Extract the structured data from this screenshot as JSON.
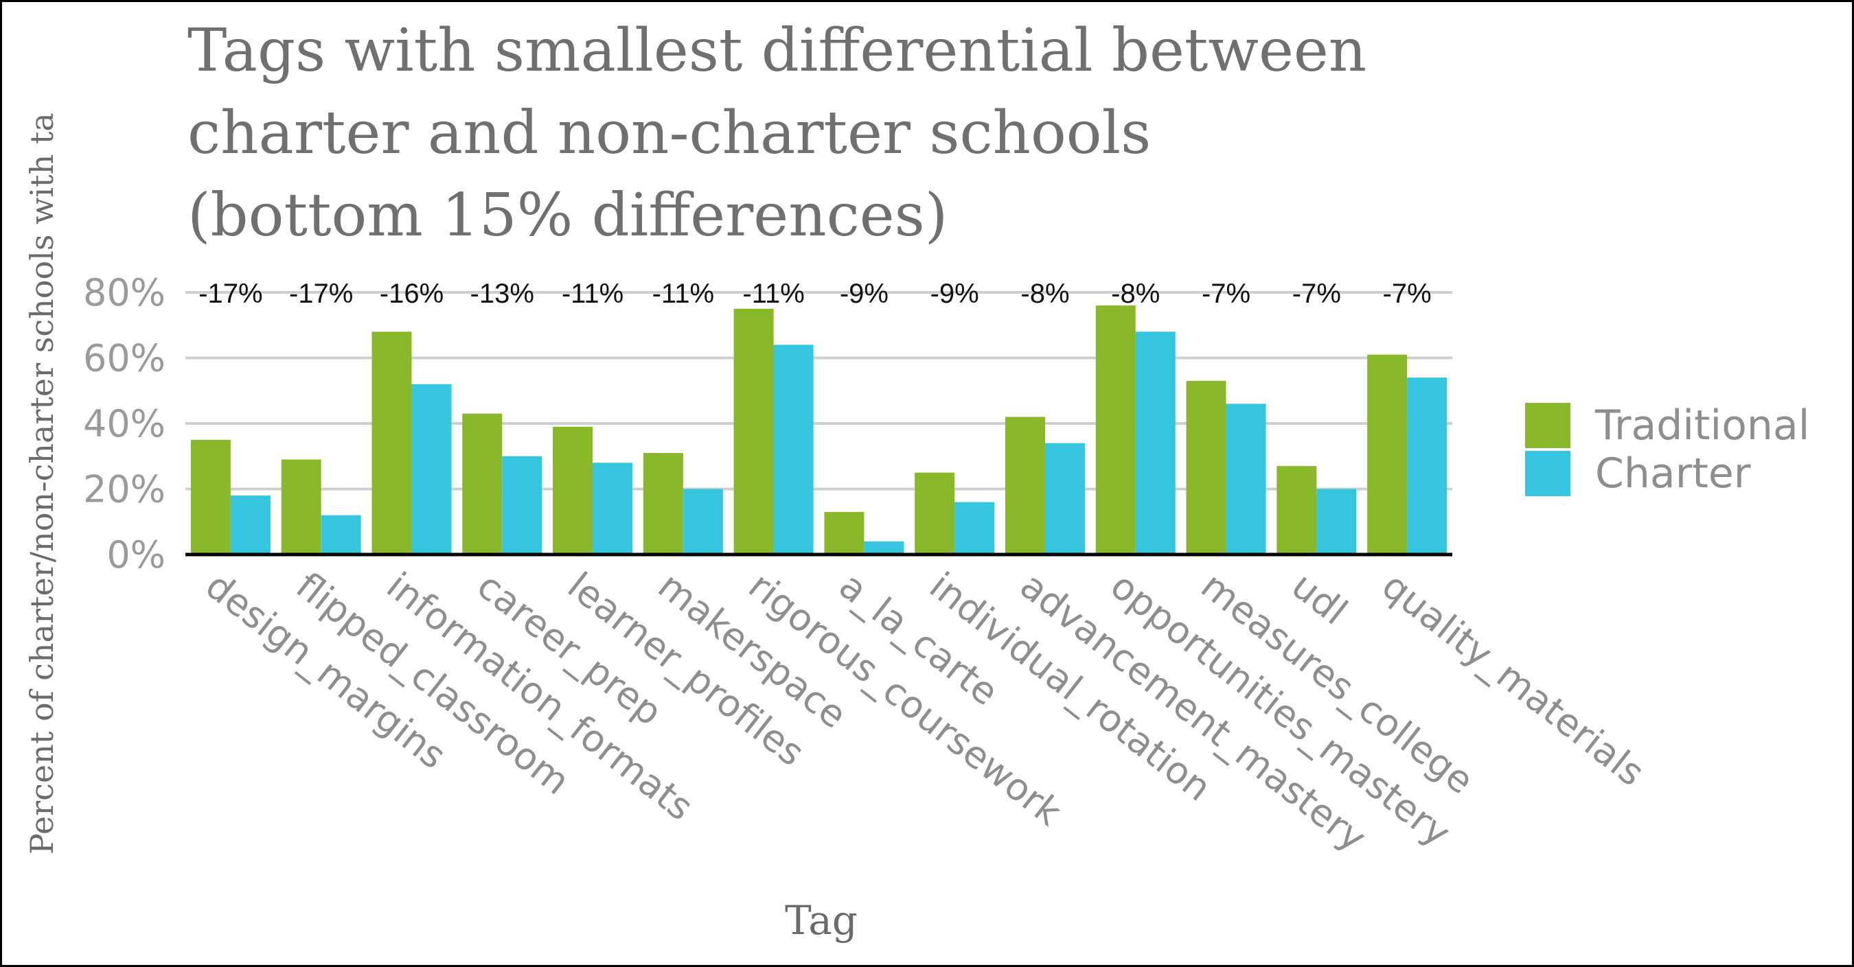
{
  "chart_data": {
    "type": "bar",
    "title": [
      "Tags with smallest differential between",
      "charter and non-charter schools",
      "(bottom 15% differences)"
    ],
    "xlabel": "Tag",
    "ylabel": "Percent of charter/non-charter schools with ta",
    "ylim": [
      0,
      0.8
    ],
    "yticks": [
      "0%",
      "20%",
      "40%",
      "60%",
      "80%"
    ],
    "grid": true,
    "legend_position": "right",
    "categories": [
      "design_margins",
      "flipped_classroom",
      "information_formats",
      "career_prep",
      "learner_profiles",
      "makerspace",
      "rigorous_coursework",
      "a_la_carte",
      "individual_rotation",
      "advancement_mastery",
      "opportunities_mastery",
      "measures_college",
      "udl",
      "quality_materials"
    ],
    "series": [
      {
        "name": "Traditional",
        "color": "#8ab82b",
        "values": [
          0.35,
          0.29,
          0.68,
          0.43,
          0.39,
          0.31,
          0.75,
          0.13,
          0.25,
          0.42,
          0.76,
          0.53,
          0.27,
          0.61
        ]
      },
      {
        "name": "Charter",
        "color": "#35c5df",
        "values": [
          0.18,
          0.12,
          0.52,
          0.3,
          0.28,
          0.2,
          0.64,
          0.04,
          0.16,
          0.34,
          0.68,
          0.46,
          0.2,
          0.54
        ]
      }
    ],
    "annotations": [
      "-17%",
      "-17%",
      "-16%",
      "-13%",
      "-11%",
      "-11%",
      "-11%",
      "-9%",
      "-9%",
      "-8%",
      "-8%",
      "-7%",
      "-7%",
      "-7%"
    ]
  }
}
